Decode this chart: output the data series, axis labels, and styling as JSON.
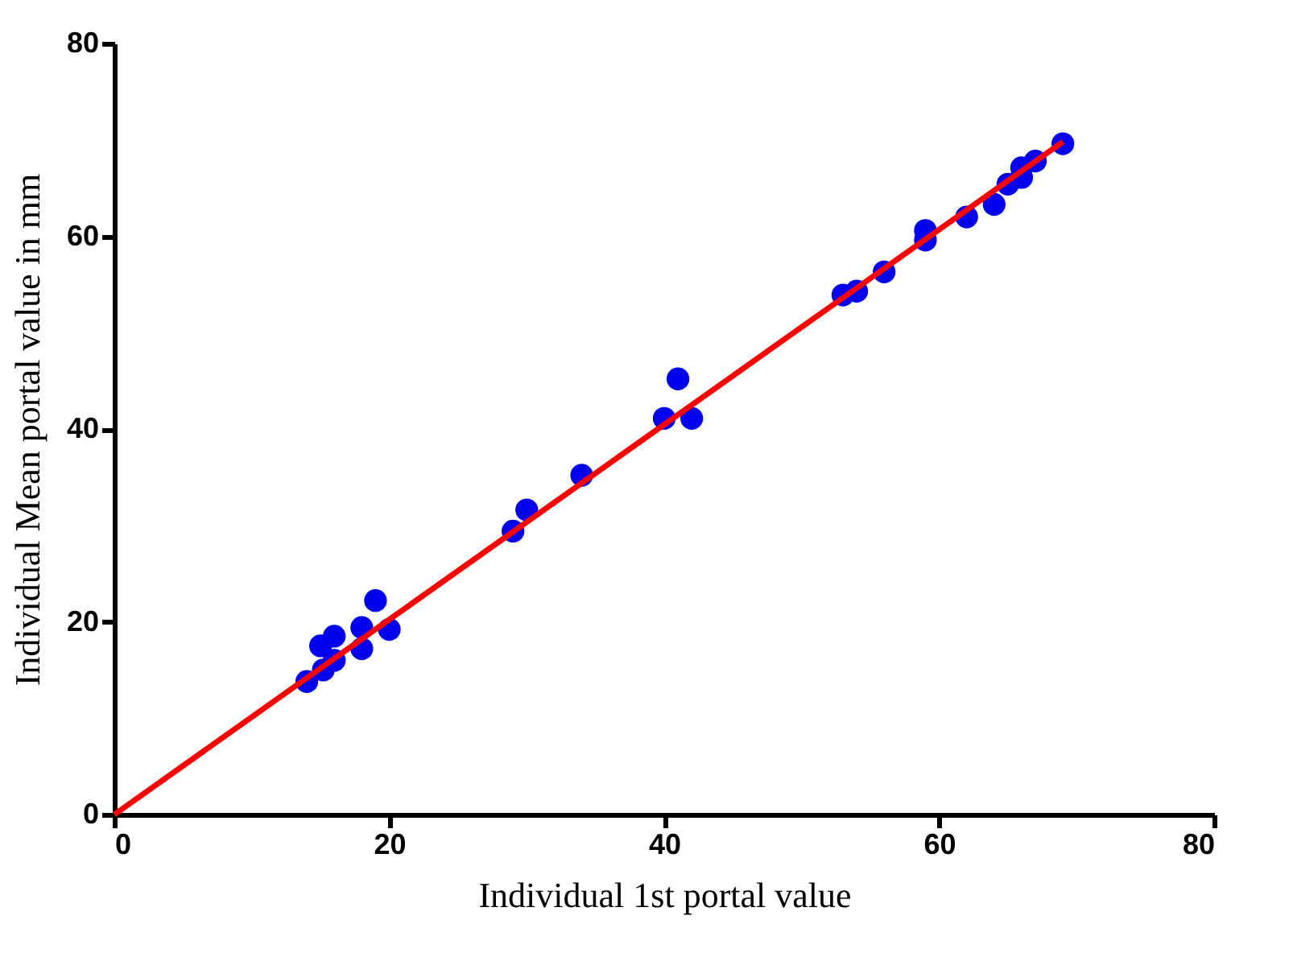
{
  "chart_data": {
    "type": "scatter",
    "xlabel": "Individual 1st portal value",
    "ylabel": "Individual Mean portal value in mm",
    "xlim": [
      0,
      80
    ],
    "ylim": [
      0,
      80
    ],
    "xticks": [
      0,
      20,
      40,
      60,
      80
    ],
    "yticks": [
      0,
      20,
      40,
      60,
      80
    ],
    "grid": false,
    "series": [
      {
        "marker": "circle",
        "color": "#0000ee",
        "x": [
          14,
          15,
          15.2,
          16,
          16,
          18,
          18,
          19,
          20,
          29,
          30,
          34,
          40,
          41,
          42,
          53,
          54,
          56,
          59,
          59,
          62,
          64,
          65,
          66,
          66,
          67,
          69
        ],
        "values": [
          13.8,
          17.5,
          15.0,
          16.0,
          18.5,
          17.2,
          19.4,
          22.2,
          19.2,
          29.4,
          31.6,
          35.2,
          41.1,
          45.2,
          41.1,
          53.9,
          54.3,
          56.3,
          60.6,
          59.6,
          62,
          63.3,
          65.4,
          67.1,
          66.1,
          67.8,
          69.6
        ]
      },
      {
        "type": "line",
        "color": "#ff0000",
        "line_style": "solid",
        "x": [
          0,
          69
        ],
        "values": [
          0,
          69.8
        ]
      }
    ]
  }
}
